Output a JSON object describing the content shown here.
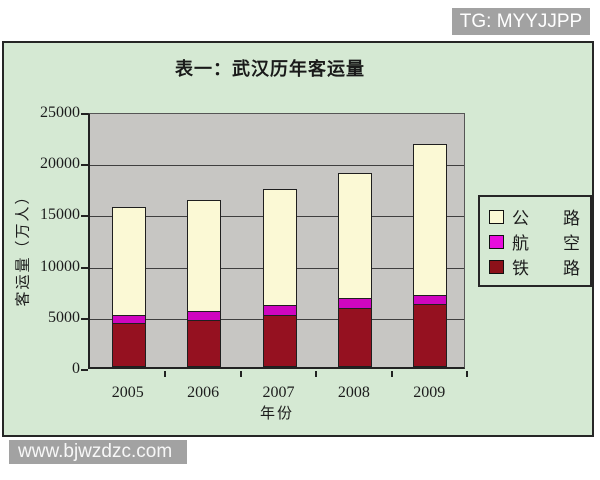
{
  "watermarks": {
    "top_right": "TG: MYYJJPP",
    "bottom_left": "www.bjwzdzc.com",
    "bg_color": "#a2a2a2"
  },
  "chart_data": {
    "type": "bar",
    "stacked": true,
    "title": "表一：武汉历年客运量",
    "xlabel": "年份",
    "ylabel": "客运量（万人）",
    "categories": [
      "2005",
      "2006",
      "2007",
      "2008",
      "2009"
    ],
    "series": [
      {
        "name": "铁路",
        "color": "#951120",
        "values": [
          4200,
          4500,
          5000,
          5700,
          6100
        ]
      },
      {
        "name": "航空",
        "color": "#cf06c0",
        "values": [
          800,
          900,
          1000,
          900,
          800
        ]
      },
      {
        "name": "公路",
        "color": "#fbf9d5",
        "values": [
          10400,
          10700,
          11200,
          12200,
          14700
        ]
      }
    ],
    "totals": [
      15400,
      16100,
      17200,
      18800,
      21600
    ],
    "ylim": [
      0,
      25000
    ],
    "yticks": [
      0,
      5000,
      10000,
      15000,
      20000,
      25000
    ],
    "grid": true,
    "legend_position": "right",
    "legend": [
      {
        "label": "公　　路",
        "color": "#fbf9d5"
      },
      {
        "label": "航　　空",
        "color": "#e80ddd"
      },
      {
        "label": "铁　　路",
        "color": "#8c1119"
      }
    ],
    "plot_bg": "#c7c6c3",
    "chart_bg": "#d5e9d3"
  }
}
